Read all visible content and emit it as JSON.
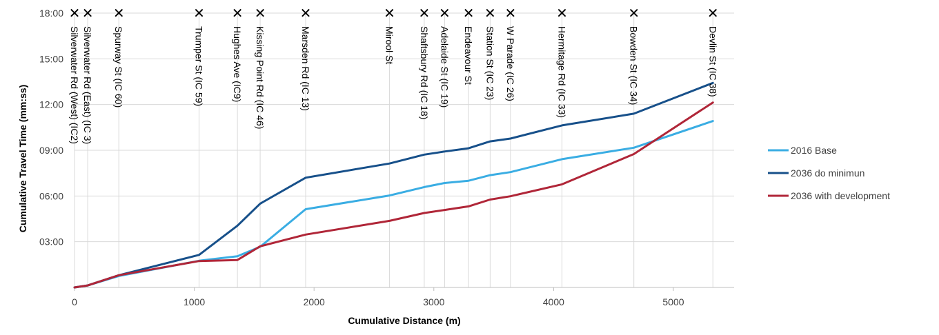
{
  "chart_data": {
    "type": "line",
    "title": "",
    "xlabel": "Cumulative Distance (m)",
    "ylabel": "Cumulative Travel Time (mm:ss)",
    "xlim": [
      0,
      5500
    ],
    "ylim": [
      0,
      1080
    ],
    "x_ticks": [
      0,
      1000,
      2000,
      3000,
      4000,
      5000
    ],
    "x_tick_labels": [
      "0",
      "1000",
      "2000",
      "3000",
      "4000",
      "5000"
    ],
    "y_ticks": [
      180,
      360,
      540,
      720,
      900,
      1080
    ],
    "y_tick_labels": [
      "03:00",
      "06:00",
      "09:00",
      "12:00",
      "15:00",
      "18:00"
    ],
    "y_units": "seconds (displayed as mm:ss)",
    "vertical_gridlines": true,
    "horizontal_gridlines": true,
    "legend_position": "right",
    "stops": [
      {
        "x": 0,
        "label": "Silverwater Rd (West) (IC2)"
      },
      {
        "x": 110,
        "label": "Silverwater Rd (East) (IC 3)"
      },
      {
        "x": 370,
        "label": "Spurway St (IC 60)"
      },
      {
        "x": 1040,
        "label": "Trumper St (IC 59)"
      },
      {
        "x": 1360,
        "label": "Hughes Ave (IC9)"
      },
      {
        "x": 1550,
        "label": "Kissing Point Rd (IC 46)"
      },
      {
        "x": 1930,
        "label": "Marsden Rd (IC 13)"
      },
      {
        "x": 2630,
        "label": "Mirool St"
      },
      {
        "x": 2920,
        "label": "Shaftsbury Rd (IC 18)"
      },
      {
        "x": 3090,
        "label": "Adelaide St (IC 19)"
      },
      {
        "x": 3290,
        "label": "Endeavour St"
      },
      {
        "x": 3470,
        "label": "Station St (IC 23)"
      },
      {
        "x": 3640,
        "label": "W Parade (IC 26)"
      },
      {
        "x": 4070,
        "label": "Hermitage Rd (IC 33)"
      },
      {
        "x": 4670,
        "label": "Bowden St (IC 34)"
      },
      {
        "x": 5330,
        "label": "Devlin St (IC 38)"
      }
    ],
    "x": [
      0,
      110,
      370,
      1040,
      1360,
      1550,
      1930,
      2630,
      2920,
      3090,
      3290,
      3470,
      3640,
      4070,
      4670,
      5330
    ],
    "series": [
      {
        "name": "2016 Base",
        "color": "#3aade3",
        "values": [
          0,
          8,
          45,
          105,
          123,
          160,
          308,
          362,
          395,
          411,
          420,
          442,
          454,
          505,
          550,
          655
        ]
      },
      {
        "name": "2036 do minimun",
        "color": "#17508a",
        "values": [
          0,
          8,
          48,
          128,
          243,
          330,
          432,
          488,
          523,
          535,
          548,
          575,
          586,
          638,
          684,
          805
        ]
      },
      {
        "name": "2036 with development",
        "color": "#b02638",
        "values": [
          0,
          8,
          48,
          104,
          108,
          162,
          208,
          262,
          293,
          305,
          319,
          346,
          359,
          406,
          525,
          728
        ]
      }
    ]
  }
}
